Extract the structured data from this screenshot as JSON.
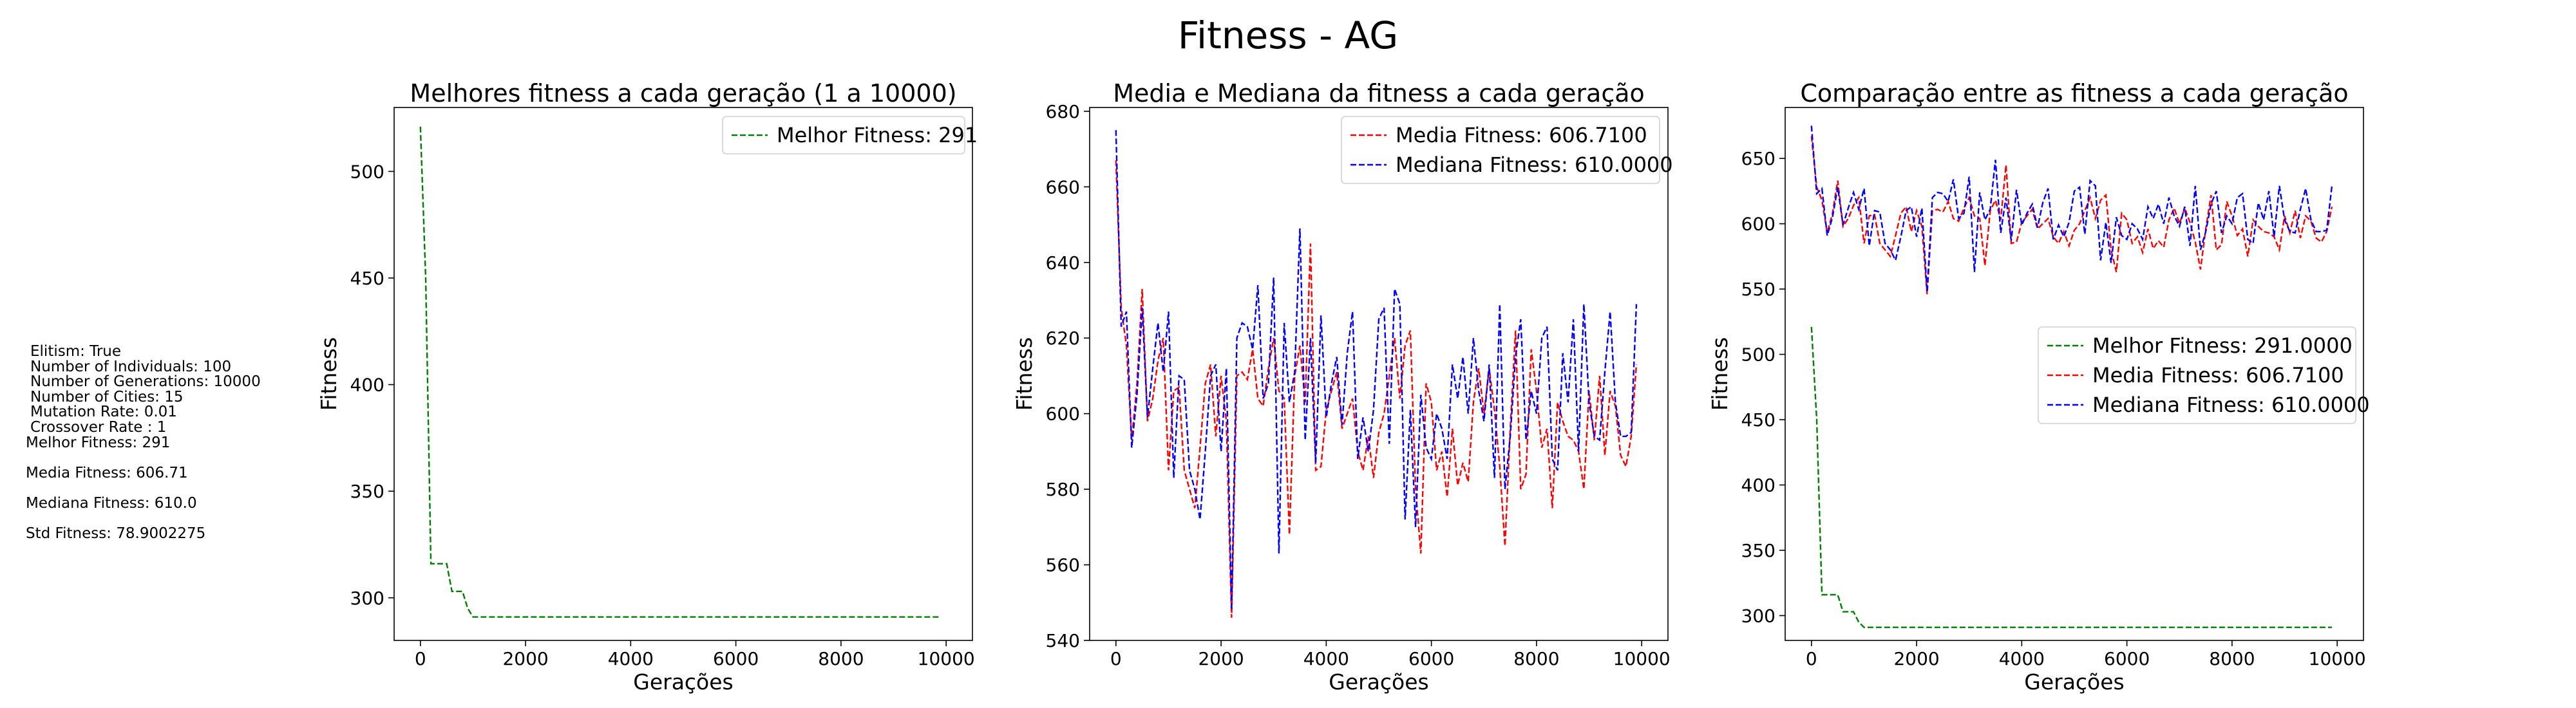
{
  "figure": {
    "suptitle": "Fitness - AG"
  },
  "info_panel": {
    "lines": [
      " Elitism: True",
      "  Number of Individuals: 100",
      "  Number of Generations: 10000",
      "  Number of Cities: 15",
      "  Mutation Rate: 0.01",
      "  Crossover Rate : 1",
      "Melhor Fitness: 291",
      "",
      "Media Fitness: 606.71",
      "",
      "Mediana Fitness: 610.0",
      "",
      "Std Fitness: 78.9002275"
    ]
  },
  "colors": {
    "best": "#008000",
    "mean": "#ff0000",
    "median": "#0000ff"
  },
  "chart_data": [
    {
      "type": "line",
      "title": "Melhores fitness a cada geração (1 a 10000)",
      "xlabel": "Gerações",
      "ylabel": "Fitness",
      "xlim": [
        -500,
        10500
      ],
      "ylim": [
        280,
        530
      ],
      "xticks": [
        0,
        2000,
        4000,
        6000,
        8000,
        10000
      ],
      "yticks": [
        300,
        350,
        400,
        450,
        500
      ],
      "legend": "top-right",
      "x": [
        0,
        100,
        200,
        300,
        400,
        500,
        600,
        700,
        800,
        900,
        1000,
        1100,
        1200,
        1300,
        1400,
        1500,
        1600,
        1700,
        1800,
        1900,
        2000,
        3000,
        4000,
        5000,
        6000,
        7000,
        8000,
        9000,
        9900
      ],
      "series": [
        {
          "name": "Melhor Fitness: 291",
          "color": "best",
          "values": [
            521,
            450,
            316,
            316,
            316,
            316,
            303,
            303,
            303,
            295,
            291,
            291,
            291,
            291,
            291,
            291,
            291,
            291,
            291,
            291,
            291,
            291,
            291,
            291,
            291,
            291,
            291,
            291,
            291
          ]
        }
      ]
    },
    {
      "type": "line",
      "title": "Media e Mediana da fitness a cada geração",
      "xlabel": "Gerações",
      "ylabel": "Fitness",
      "xlim": [
        -500,
        10500
      ],
      "ylim": [
        540,
        681
      ],
      "xticks": [
        0,
        2000,
        4000,
        6000,
        8000,
        10000
      ],
      "yticks": [
        540,
        560,
        580,
        600,
        620,
        640,
        660,
        680
      ],
      "legend": "top-right",
      "x": [
        0,
        100,
        200,
        300,
        400,
        500,
        600,
        700,
        800,
        900,
        1000,
        1100,
        1200,
        1300,
        1400,
        1500,
        1600,
        1700,
        1800,
        1900,
        2000,
        2100,
        2200,
        2300,
        2400,
        2500,
        2600,
        2700,
        2800,
        2900,
        3000,
        3100,
        3200,
        3300,
        3400,
        3500,
        3600,
        3700,
        3800,
        3900,
        4000,
        4100,
        4200,
        4300,
        4400,
        4500,
        4600,
        4700,
        4800,
        4900,
        5000,
        5100,
        5200,
        5300,
        5400,
        5500,
        5600,
        5700,
        5800,
        5900,
        6000,
        6100,
        6200,
        6300,
        6400,
        6500,
        6600,
        6700,
        6800,
        6900,
        7000,
        7100,
        7200,
        7300,
        7400,
        7500,
        7600,
        7700,
        7800,
        7900,
        8000,
        8100,
        8200,
        8300,
        8400,
        8500,
        8600,
        8700,
        8800,
        8900,
        9000,
        9100,
        9200,
        9300,
        9400,
        9500,
        9600,
        9700,
        9800,
        9900
      ],
      "series": [
        {
          "name": "Media Fitness: 606.7100",
          "color": "mean",
          "values": [
            667,
            628,
            618,
            593,
            608,
            633,
            598,
            604,
            614,
            620,
            585,
            606,
            607,
            585,
            580,
            575,
            591,
            608,
            613,
            594,
            610,
            598,
            546,
            610,
            611,
            609,
            617,
            604,
            602,
            612,
            620,
            606,
            604,
            568,
            610,
            618,
            603,
            645,
            585,
            586,
            601,
            606,
            611,
            596,
            600,
            604,
            590,
            585,
            594,
            583,
            595,
            600,
            610,
            620,
            604,
            618,
            622,
            580,
            563,
            608,
            603,
            585,
            590,
            578,
            596,
            581,
            587,
            582,
            603,
            612,
            600,
            612,
            601,
            586,
            565,
            596,
            622,
            580,
            584,
            617,
            606,
            591,
            596,
            575,
            603,
            598,
            594,
            593,
            590,
            580,
            606,
            593,
            610,
            589,
            606,
            602,
            589,
            586,
            594,
            613
          ]
        },
        {
          "name": "Mediana Fitness: 610.0000",
          "color": "median",
          "values": [
            675,
            623,
            627,
            591,
            605,
            628,
            599,
            612,
            624,
            611,
            627,
            583,
            610,
            609,
            585,
            580,
            572,
            590,
            610,
            613,
            590,
            612,
            548,
            620,
            624,
            623,
            617,
            634,
            604,
            608,
            636,
            563,
            624,
            603,
            611,
            649,
            593,
            620,
            587,
            626,
            599,
            608,
            615,
            597,
            616,
            627,
            588,
            599,
            590,
            601,
            625,
            628,
            592,
            633,
            629,
            572,
            601,
            570,
            605,
            591,
            588,
            600,
            596,
            588,
            613,
            604,
            615,
            600,
            620,
            606,
            598,
            613,
            583,
            629,
            580,
            594,
            615,
            625,
            593,
            606,
            600,
            620,
            623,
            588,
            585,
            616,
            603,
            625,
            590,
            629,
            603,
            594,
            593,
            611,
            627,
            603,
            594,
            594,
            595,
            629
          ]
        }
      ]
    },
    {
      "type": "line",
      "title": "Comparação entre as fitness a cada geração",
      "xlabel": "Gerações",
      "ylabel": "Fitness",
      "xlim": [
        -500,
        10500
      ],
      "ylim": [
        281,
        689
      ],
      "xticks": [
        0,
        2000,
        4000,
        6000,
        8000,
        10000
      ],
      "yticks": [
        300,
        350,
        400,
        450,
        500,
        550,
        600,
        650
      ],
      "legend": "center-right",
      "x": [
        0,
        100,
        200,
        300,
        400,
        500,
        600,
        700,
        800,
        900,
        1000,
        1100,
        1200,
        1300,
        1400,
        1500,
        1600,
        1700,
        1800,
        1900,
        2000,
        2100,
        2200,
        2300,
        2400,
        2500,
        2600,
        2700,
        2800,
        2900,
        3000,
        3100,
        3200,
        3300,
        3400,
        3500,
        3600,
        3700,
        3800,
        3900,
        4000,
        4100,
        4200,
        4300,
        4400,
        4500,
        4600,
        4700,
        4800,
        4900,
        5000,
        5100,
        5200,
        5300,
        5400,
        5500,
        5600,
        5700,
        5800,
        5900,
        6000,
        6100,
        6200,
        6300,
        6400,
        6500,
        6600,
        6700,
        6800,
        6900,
        7000,
        7100,
        7200,
        7300,
        7400,
        7500,
        7600,
        7700,
        7800,
        7900,
        8000,
        8100,
        8200,
        8300,
        8400,
        8500,
        8600,
        8700,
        8800,
        8900,
        9000,
        9100,
        9200,
        9300,
        9400,
        9500,
        9600,
        9700,
        9800,
        9900
      ],
      "series": [
        {
          "name": "Melhor Fitness: 291.0000",
          "color": "best",
          "values": [
            521,
            450,
            316,
            316,
            316,
            316,
            303,
            303,
            303,
            295,
            291,
            291,
            291,
            291,
            291,
            291,
            291,
            291,
            291,
            291,
            291,
            291,
            291,
            291,
            291,
            291,
            291,
            291,
            291,
            291,
            291,
            291,
            291,
            291,
            291,
            291,
            291,
            291,
            291,
            291,
            291,
            291,
            291,
            291,
            291,
            291,
            291,
            291,
            291,
            291,
            291,
            291,
            291,
            291,
            291,
            291,
            291,
            291,
            291,
            291,
            291,
            291,
            291,
            291,
            291,
            291,
            291,
            291,
            291,
            291,
            291,
            291,
            291,
            291,
            291,
            291,
            291,
            291,
            291,
            291,
            291,
            291,
            291,
            291,
            291,
            291,
            291,
            291,
            291,
            291,
            291,
            291,
            291,
            291,
            291,
            291,
            291,
            291,
            291,
            291
          ]
        },
        {
          "name": "Media Fitness: 606.7100",
          "color": "mean",
          "values": [
            667,
            628,
            618,
            593,
            608,
            633,
            598,
            604,
            614,
            620,
            585,
            606,
            607,
            585,
            580,
            575,
            591,
            608,
            613,
            594,
            610,
            598,
            546,
            610,
            611,
            609,
            617,
            604,
            602,
            612,
            620,
            606,
            604,
            568,
            610,
            618,
            603,
            645,
            585,
            586,
            601,
            606,
            611,
            596,
            600,
            604,
            590,
            585,
            594,
            583,
            595,
            600,
            610,
            620,
            604,
            618,
            622,
            580,
            563,
            608,
            603,
            585,
            590,
            578,
            596,
            581,
            587,
            582,
            603,
            612,
            600,
            612,
            601,
            586,
            565,
            596,
            622,
            580,
            584,
            617,
            606,
            591,
            596,
            575,
            603,
            598,
            594,
            593,
            590,
            580,
            606,
            593,
            610,
            589,
            606,
            602,
            589,
            586,
            594,
            613
          ]
        },
        {
          "name": "Mediana Fitness: 610.0000",
          "color": "median",
          "values": [
            675,
            623,
            627,
            591,
            605,
            628,
            599,
            612,
            624,
            611,
            627,
            583,
            610,
            609,
            585,
            580,
            572,
            590,
            610,
            613,
            590,
            612,
            548,
            620,
            624,
            623,
            617,
            634,
            604,
            608,
            636,
            563,
            624,
            603,
            611,
            649,
            593,
            620,
            587,
            626,
            599,
            608,
            615,
            597,
            616,
            627,
            588,
            599,
            590,
            601,
            625,
            628,
            592,
            633,
            629,
            572,
            601,
            570,
            605,
            591,
            588,
            600,
            596,
            588,
            613,
            604,
            615,
            600,
            620,
            606,
            598,
            613,
            583,
            629,
            580,
            594,
            615,
            625,
            593,
            606,
            600,
            620,
            623,
            588,
            585,
            616,
            603,
            625,
            590,
            629,
            603,
            594,
            593,
            611,
            627,
            603,
            594,
            594,
            595,
            629
          ]
        }
      ]
    }
  ]
}
